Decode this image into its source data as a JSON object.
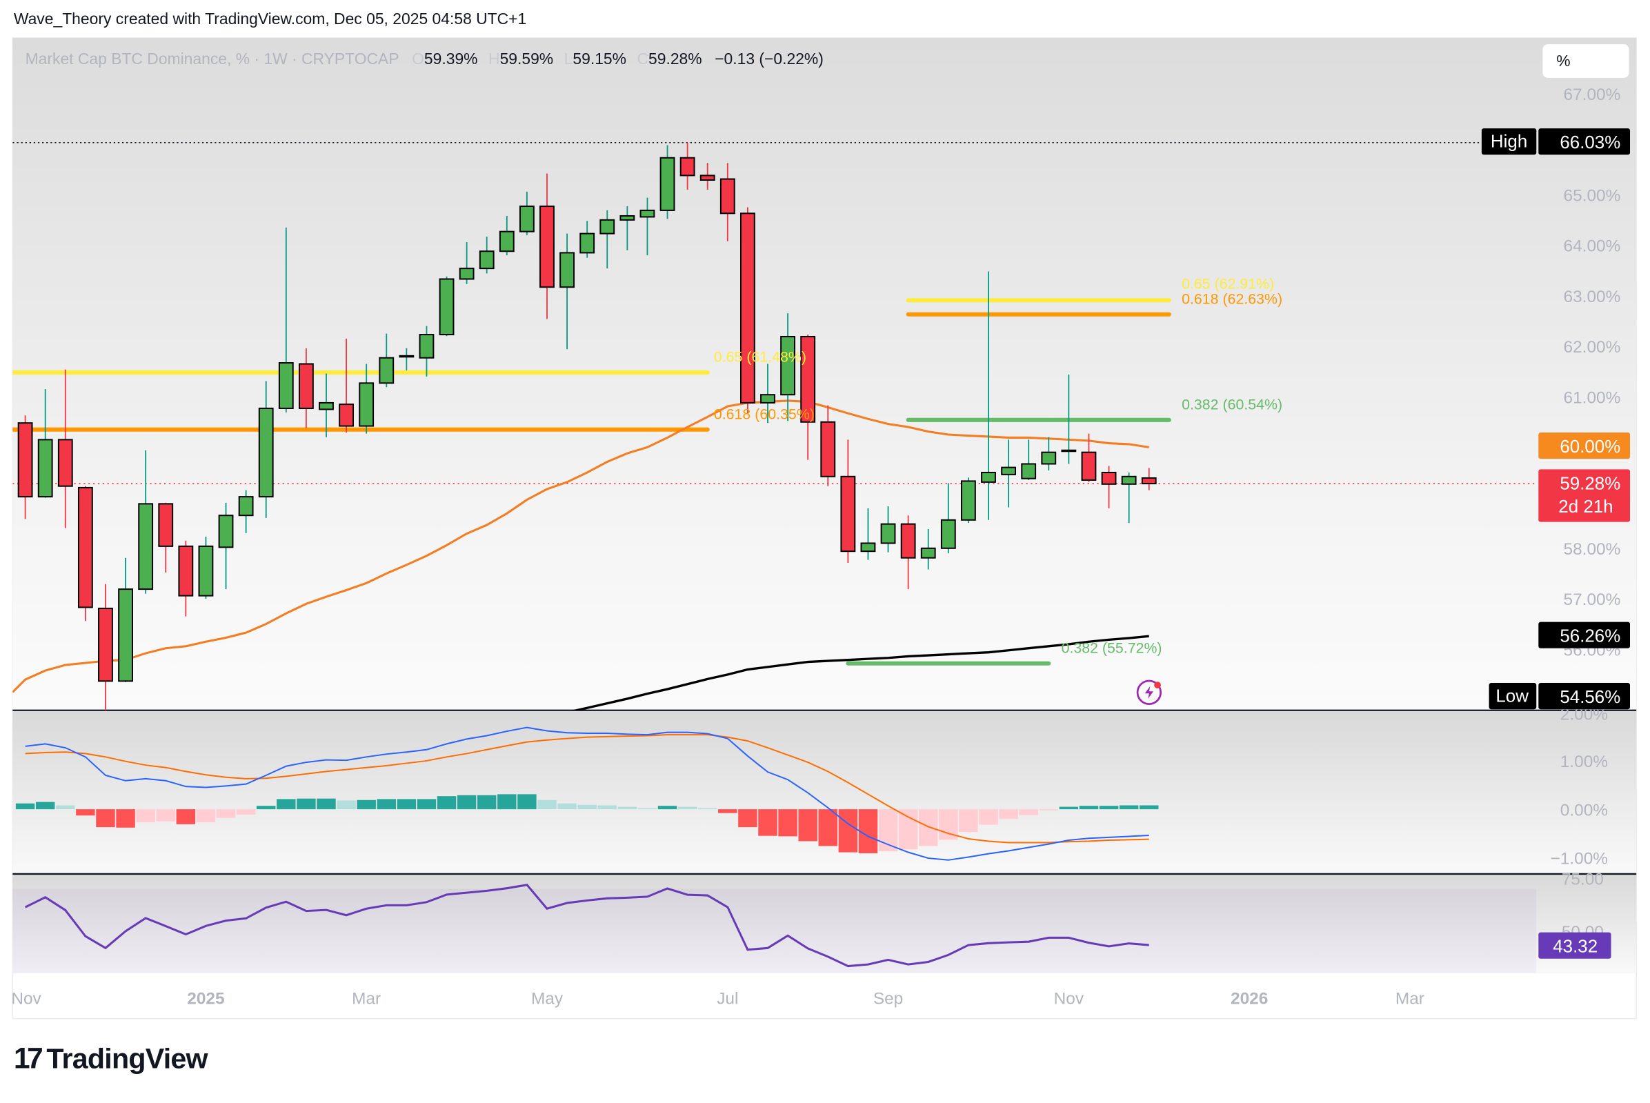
{
  "header": {
    "attribution": "Wave_Theory created with TradingView.com, Dec 05, 2025 04:58 UTC+1"
  },
  "legend": {
    "title": "Market Cap BTC Dominance, % · 1W · CRYPTOCAP",
    "o_label": "O",
    "o": "59.39%",
    "h_label": "H",
    "h": "59.59%",
    "l_label": "L",
    "l": "59.15%",
    "c_label": "C",
    "c": "59.28%",
    "change": "−0.13 (−0.22%)"
  },
  "scale_button": "%",
  "price_axis": {
    "ticks": [
      {
        "value": 67,
        "label": "67.00%"
      },
      {
        "value": 65,
        "label": "65.00%"
      },
      {
        "value": 64,
        "label": "64.00%"
      },
      {
        "value": 63,
        "label": "63.00%"
      },
      {
        "value": 62,
        "label": "62.00%"
      },
      {
        "value": 61,
        "label": "61.00%"
      },
      {
        "value": 58,
        "label": "58.00%"
      },
      {
        "value": 57,
        "label": "57.00%"
      },
      {
        "value": 56,
        "label": "56.00%"
      }
    ],
    "high": {
      "label": "High",
      "value": "66.03%"
    },
    "low": {
      "label": "Low",
      "value": "54.56%"
    },
    "ma_orange_label": "60.00%",
    "ma_black_label": "56.26%",
    "last_price": "59.28%",
    "countdown": "2d 21h"
  },
  "macd_axis": {
    "ticks": [
      {
        "value": 2,
        "label": "2.00%"
      },
      {
        "value": 1,
        "label": "1.00%"
      },
      {
        "value": 0,
        "label": "0.00%"
      },
      {
        "value": -1,
        "label": "−1.00%"
      }
    ]
  },
  "rsi_axis": {
    "ticks": [
      {
        "value": 75,
        "label": "75.00"
      },
      {
        "value": 50,
        "label": "50.00"
      }
    ],
    "last": "43.32"
  },
  "time_axis": [
    {
      "label": "Nov",
      "at_bar": 0.05,
      "bold": false
    },
    {
      "label": "2025",
      "at_bar": 9.0,
      "bold": true
    },
    {
      "label": "Mar",
      "at_bar": 17.0,
      "bold": false
    },
    {
      "label": "May",
      "at_bar": 26.0,
      "bold": false
    },
    {
      "label": "Jul",
      "at_bar": 35.0,
      "bold": false
    },
    {
      "label": "Sep",
      "at_bar": 43.0,
      "bold": false
    },
    {
      "label": "Nov",
      "at_bar": 52.0,
      "bold": false
    },
    {
      "label": "2026",
      "at_bar": 61.0,
      "bold": true
    },
    {
      "label": "Mar",
      "at_bar": 69.0,
      "bold": false
    }
  ],
  "brand": {
    "name": "TradingView",
    "mark": "17"
  },
  "colors": {
    "up_body": "#4caf50",
    "down_body": "#f23645",
    "up_wick": "#089981",
    "down_wick": "#f23645",
    "ma_orange": "#f57c1f",
    "ma_black": "#000000",
    "fib_yellow": "#ffeb3b",
    "fib_orange": "#ff9800",
    "fib_green": "#66bb6a",
    "macd": "#2962ff",
    "signal": "#ff6d00",
    "hist_up": "#26a69a",
    "hist_up_weak": "#b2dfdb",
    "hist_down": "#ff5252",
    "hist_down_weak": "#ffcdd2",
    "rsi": "#673ab7",
    "last_price": "#f23645"
  },
  "chart_data": {
    "type": "candlestick",
    "symbol": "Market Cap BTC Dominance, %",
    "interval": "1W",
    "ylim": [
      54.3,
      67.98
    ],
    "candles_ohlc": [
      [
        60.48,
        60.63,
        58.58,
        59.02
      ],
      [
        59.02,
        61.15,
        59.0,
        60.15
      ],
      [
        60.15,
        61.54,
        58.4,
        59.23
      ],
      [
        59.2,
        59.23,
        56.56,
        56.83
      ],
      [
        56.81,
        57.29,
        54.56,
        55.37
      ],
      [
        55.37,
        57.81,
        55.35,
        57.19
      ],
      [
        57.19,
        59.94,
        57.1,
        58.88
      ],
      [
        58.88,
        58.9,
        57.52,
        58.04
      ],
      [
        58.04,
        58.15,
        56.65,
        57.06
      ],
      [
        57.06,
        58.23,
        57.0,
        58.04
      ],
      [
        58.02,
        58.9,
        57.19,
        58.65
      ],
      [
        58.65,
        59.15,
        58.3,
        59.02
      ],
      [
        59.02,
        61.31,
        58.6,
        60.77
      ],
      [
        60.77,
        64.35,
        60.69,
        61.67
      ],
      [
        61.65,
        61.96,
        60.38,
        60.77
      ],
      [
        60.75,
        61.46,
        60.2,
        60.88
      ],
      [
        60.85,
        62.15,
        60.29,
        60.42
      ],
      [
        60.42,
        61.65,
        60.27,
        61.27
      ],
      [
        61.27,
        62.25,
        61.19,
        61.77
      ],
      [
        61.79,
        61.96,
        61.52,
        61.81
      ],
      [
        61.77,
        62.4,
        61.4,
        62.23
      ],
      [
        62.23,
        63.38,
        62.2,
        63.33
      ],
      [
        63.33,
        64.06,
        63.23,
        63.54
      ],
      [
        63.54,
        64.17,
        63.44,
        63.88
      ],
      [
        63.88,
        64.58,
        63.8,
        64.27
      ],
      [
        64.27,
        65.06,
        64.2,
        64.77
      ],
      [
        64.77,
        65.42,
        62.54,
        63.17
      ],
      [
        63.17,
        64.23,
        61.94,
        63.85
      ],
      [
        63.85,
        64.48,
        63.75,
        64.23
      ],
      [
        64.23,
        64.69,
        63.54,
        64.5
      ],
      [
        64.5,
        64.77,
        63.9,
        64.58
      ],
      [
        64.56,
        64.94,
        63.8,
        64.69
      ],
      [
        64.69,
        65.98,
        64.52,
        65.73
      ],
      [
        65.73,
        66.03,
        65.1,
        65.38
      ],
      [
        65.38,
        65.63,
        65.1,
        65.29
      ],
      [
        65.31,
        65.63,
        64.08,
        64.63
      ],
      [
        64.63,
        64.75,
        60.67,
        60.88
      ],
      [
        60.88,
        61.65,
        60.48,
        61.04
      ],
      [
        61.04,
        62.65,
        60.52,
        62.19
      ],
      [
        62.19,
        62.23,
        59.75,
        60.5
      ],
      [
        60.5,
        60.83,
        59.23,
        59.42
      ],
      [
        59.42,
        60.15,
        57.71,
        57.94
      ],
      [
        57.94,
        58.79,
        57.77,
        58.1
      ],
      [
        58.1,
        58.83,
        57.92,
        58.48
      ],
      [
        58.48,
        58.65,
        57.19,
        57.81
      ],
      [
        57.81,
        58.38,
        57.58,
        58.0
      ],
      [
        58.0,
        59.29,
        57.9,
        58.56
      ],
      [
        58.56,
        59.4,
        58.5,
        59.33
      ],
      [
        59.31,
        63.48,
        58.56,
        59.5
      ],
      [
        59.46,
        60.15,
        58.81,
        59.6
      ],
      [
        59.38,
        60.15,
        59.35,
        59.67
      ],
      [
        59.67,
        60.2,
        59.54,
        59.9
      ],
      [
        59.92,
        61.44,
        59.67,
        59.94
      ],
      [
        59.9,
        60.27,
        59.31,
        59.35
      ],
      [
        59.5,
        59.63,
        58.79,
        59.27
      ],
      [
        59.27,
        59.5,
        58.5,
        59.42
      ],
      [
        59.39,
        59.59,
        59.15,
        59.28
      ]
    ],
    "ma_orange": [
      55.4,
      55.58,
      55.69,
      55.73,
      55.77,
      55.79,
      55.92,
      56.02,
      56.06,
      56.15,
      56.23,
      56.33,
      56.5,
      56.71,
      56.9,
      57.04,
      57.17,
      57.31,
      57.5,
      57.67,
      57.85,
      58.06,
      58.29,
      58.46,
      58.69,
      58.96,
      59.17,
      59.31,
      59.5,
      59.71,
      59.88,
      60.0,
      60.19,
      60.4,
      60.6,
      60.81,
      60.88,
      60.9,
      60.92,
      60.9,
      60.79,
      60.67,
      60.56,
      60.46,
      60.4,
      60.31,
      60.25,
      60.23,
      60.21,
      60.19,
      60.19,
      60.17,
      60.15,
      60.13,
      60.08,
      60.06,
      60.0
    ],
    "ma_black": [
      null,
      null,
      null,
      null,
      null,
      null,
      null,
      null,
      null,
      null,
      null,
      null,
      null,
      null,
      null,
      null,
      null,
      null,
      null,
      null,
      null,
      null,
      null,
      null,
      null,
      null,
      null,
      54.75,
      54.84,
      54.93,
      55.02,
      55.12,
      55.21,
      55.31,
      55.41,
      55.5,
      55.6,
      55.65,
      55.7,
      55.75,
      55.77,
      55.79,
      55.81,
      55.83,
      55.86,
      55.88,
      55.9,
      55.92,
      55.94,
      55.98,
      56.02,
      56.06,
      56.1,
      56.15,
      56.19,
      56.22,
      56.26
    ],
    "fib_levels": [
      {
        "label": "0.65 (61.48%)",
        "price": 61.48,
        "color": "yellow",
        "from_bar": -1.2,
        "to_bar": 34.0
      },
      {
        "label": "0.618 (60.35%)",
        "price": 60.35,
        "color": "orange",
        "from_bar": -1.2,
        "to_bar": 34.0
      },
      {
        "label": "0.65 (62.91%)",
        "price": 62.91,
        "color": "yellow",
        "from_bar": 44.0,
        "to_bar": 57.0
      },
      {
        "label": "0.618 (62.63%)",
        "price": 62.63,
        "color": "orange",
        "from_bar": 44.0,
        "to_bar": 57.0
      },
      {
        "label": "0.382 (60.54%)",
        "price": 60.54,
        "color": "green",
        "from_bar": 44.0,
        "to_bar": 57.0
      },
      {
        "label": "0.382 (55.72%)",
        "price": 55.72,
        "color": "green",
        "from_bar": 41.0,
        "to_bar": 51.0
      }
    ],
    "macd": {
      "ylim": [
        -1.3,
        2.2
      ],
      "macd": [
        1.3,
        1.35,
        1.27,
        1.08,
        0.7,
        0.59,
        0.63,
        0.59,
        0.47,
        0.45,
        0.48,
        0.52,
        0.7,
        0.89,
        0.97,
        1.02,
        1.01,
        1.08,
        1.14,
        1.18,
        1.23,
        1.35,
        1.45,
        1.52,
        1.61,
        1.69,
        1.62,
        1.58,
        1.57,
        1.57,
        1.55,
        1.54,
        1.59,
        1.59,
        1.56,
        1.46,
        1.1,
        0.77,
        0.61,
        0.34,
        0.03,
        -0.3,
        -0.56,
        -0.73,
        -0.89,
        -1.01,
        -1.05,
        -0.99,
        -0.92,
        -0.86,
        -0.79,
        -0.72,
        -0.64,
        -0.6,
        -0.58,
        -0.56,
        -0.54
      ],
      "signal": [
        1.15,
        1.17,
        1.18,
        1.15,
        1.08,
        0.99,
        0.91,
        0.86,
        0.78,
        0.71,
        0.66,
        0.63,
        0.64,
        0.68,
        0.73,
        0.78,
        0.82,
        0.86,
        0.9,
        0.95,
        1.0,
        1.08,
        1.15,
        1.23,
        1.31,
        1.39,
        1.43,
        1.46,
        1.49,
        1.5,
        1.51,
        1.52,
        1.54,
        1.54,
        1.54,
        1.49,
        1.41,
        1.27,
        1.12,
        0.97,
        0.78,
        0.55,
        0.31,
        0.07,
        -0.16,
        -0.36,
        -0.5,
        -0.61,
        -0.66,
        -0.69,
        -0.69,
        -0.69,
        -0.67,
        -0.66,
        -0.64,
        -0.63,
        -0.62
      ],
      "histogram": [
        0.12,
        0.15,
        0.08,
        -0.13,
        -0.37,
        -0.38,
        -0.27,
        -0.25,
        -0.31,
        -0.27,
        -0.18,
        -0.11,
        0.07,
        0.21,
        0.22,
        0.22,
        0.18,
        0.19,
        0.21,
        0.21,
        0.21,
        0.27,
        0.29,
        0.29,
        0.31,
        0.31,
        0.19,
        0.12,
        0.09,
        0.08,
        0.05,
        0.02,
        0.07,
        0.05,
        0.02,
        -0.08,
        -0.37,
        -0.55,
        -0.56,
        -0.66,
        -0.76,
        -0.89,
        -0.91,
        -0.87,
        -0.83,
        -0.76,
        -0.63,
        -0.47,
        -0.32,
        -0.2,
        -0.12,
        -0.02,
        0.05,
        0.07,
        0.07,
        0.08,
        0.08
      ]
    },
    "rsi": {
      "band": [
        30,
        70
      ],
      "values": [
        61.3,
        66.0,
        59.9,
        47.5,
        41.9,
        49.9,
        56.1,
        52.3,
        48.4,
        52.4,
        54.9,
        56.0,
        61.1,
        63.9,
        59.5,
        60.0,
        57.5,
        60.6,
        62.2,
        62.2,
        63.7,
        67.3,
        68.2,
        69.1,
        70.3,
        71.9,
        60.6,
        63.3,
        64.5,
        65.5,
        65.8,
        66.3,
        70.2,
        67.2,
        66.9,
        61.3,
        41.1,
        41.9,
        47.8,
        41.7,
        37.8,
        33.3,
        34.1,
        36.3,
        34.1,
        35.3,
        38.6,
        43.3,
        44.2,
        44.6,
        44.9,
        46.8,
        46.8,
        44.4,
        42.7,
        44.1,
        43.32
      ]
    }
  }
}
